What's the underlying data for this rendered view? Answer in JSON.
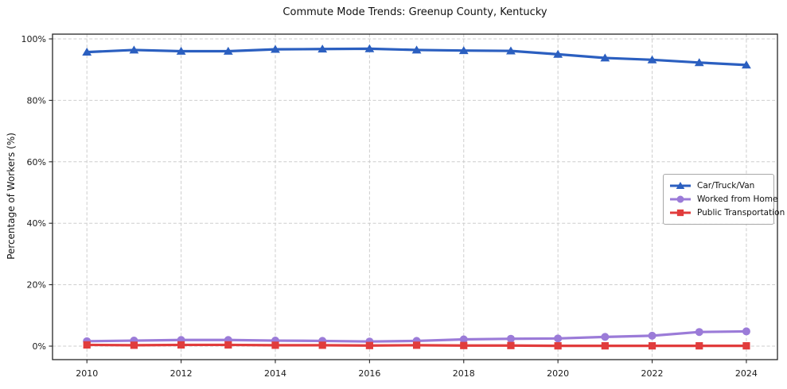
{
  "chart_data": {
    "type": "line",
    "title": "Commute Mode Trends: Greenup County, Kentucky",
    "xlabel": "",
    "ylabel": "Percentage of Workers (%)",
    "x": [
      2010,
      2011,
      2012,
      2013,
      2014,
      2015,
      2016,
      2017,
      2018,
      2019,
      2020,
      2021,
      2022,
      2023,
      2024
    ],
    "xticks": [
      2010,
      2012,
      2014,
      2016,
      2018,
      2020,
      2022,
      2024
    ],
    "xtick_labels": [
      "2010",
      "2012",
      "2014",
      "2016",
      "2018",
      "2020",
      "2022",
      "2024"
    ],
    "yticks": [
      0,
      20,
      40,
      60,
      80,
      100
    ],
    "ytick_labels": [
      "0%",
      "20%",
      "40%",
      "60%",
      "80%",
      "100%"
    ],
    "xlim": [
      2009.27,
      2024.66
    ],
    "ylim": [
      -4.39,
      101.55
    ],
    "grid": true,
    "grid_style": "dashed",
    "legend_position": "center right",
    "series": [
      {
        "name": "Car/Truck/Van",
        "color": "#2b5fc0",
        "marker": "triangle",
        "values": [
          95.7,
          96.4,
          96.0,
          96.0,
          96.6,
          96.7,
          96.8,
          96.4,
          96.2,
          96.1,
          95.0,
          93.8,
          93.2,
          92.3,
          91.5
        ]
      },
      {
        "name": "Worked from Home",
        "color": "#9b7bd8",
        "marker": "circle",
        "values": [
          1.6,
          1.8,
          2.0,
          2.0,
          1.8,
          1.7,
          1.5,
          1.7,
          2.2,
          2.4,
          2.5,
          3.0,
          3.4,
          4.6,
          4.8
        ]
      },
      {
        "name": "Public Transportation",
        "color": "#e13c3c",
        "marker": "square",
        "values": [
          0.4,
          0.3,
          0.4,
          0.4,
          0.3,
          0.3,
          0.2,
          0.3,
          0.2,
          0.2,
          0.1,
          0.1,
          0.1,
          0.1,
          0.1
        ]
      }
    ]
  }
}
